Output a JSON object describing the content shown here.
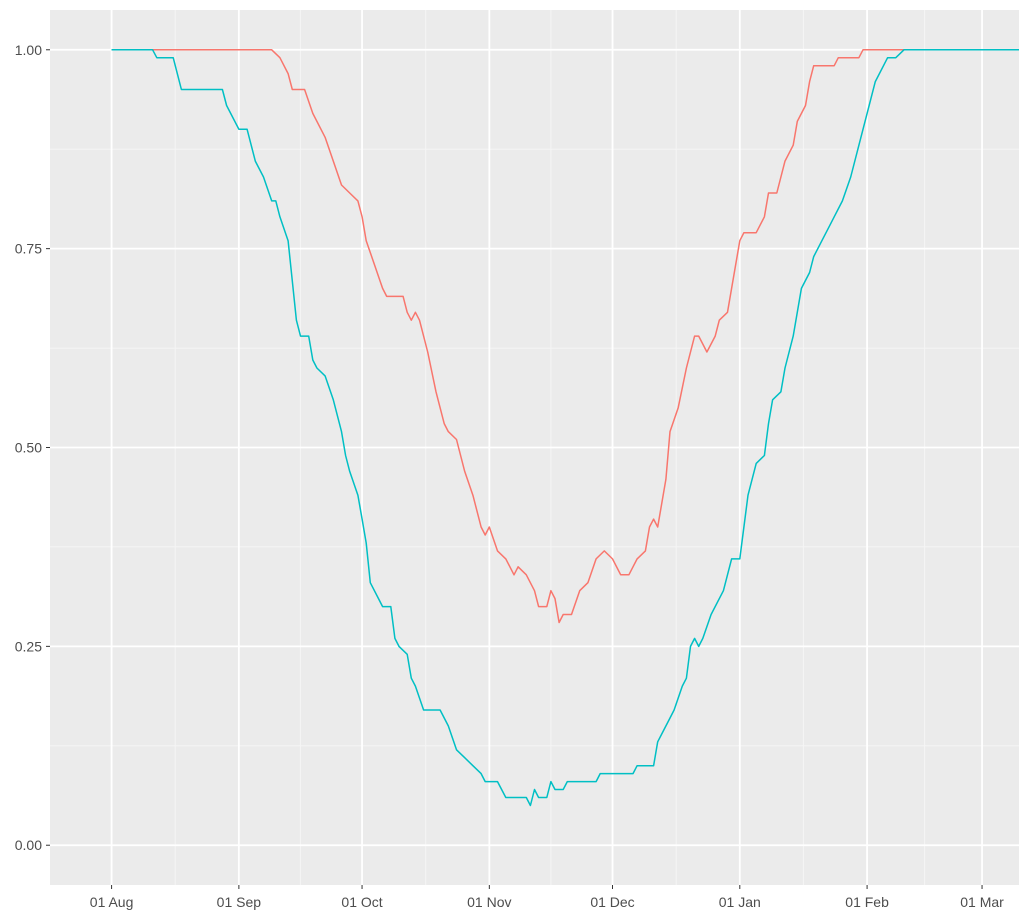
{
  "chart_data": {
    "type": "line",
    "title": "",
    "xlabel": "",
    "ylabel": "",
    "xlim": [
      "2020-07-17",
      "2021-03-10"
    ],
    "ylim": [
      -0.05,
      1.05
    ],
    "x_ticks": [
      "2020-08-01",
      "2020-09-01",
      "2020-10-01",
      "2020-11-01",
      "2020-12-01",
      "2021-01-01",
      "2021-02-01",
      "2021-03-01"
    ],
    "x_tick_labels": [
      "01 Aug",
      "01 Sep",
      "01 Oct",
      "01 Nov",
      "01 Dec",
      "01 Jan",
      "01 Feb",
      "01 Mar"
    ],
    "y_ticks": [
      0,
      0.25,
      0.5,
      0.75,
      1
    ],
    "y_tick_labels": [
      "0.00",
      "0.25",
      "0.50",
      "0.75",
      "1.00"
    ],
    "grid": true,
    "legend": "none",
    "series": [
      {
        "color": "#F8766D",
        "points": [
          [
            "2020-08-01",
            1.0
          ],
          [
            "2020-08-10",
            1.0
          ],
          [
            "2020-08-20",
            1.0
          ],
          [
            "2020-09-01",
            1.0
          ],
          [
            "2020-09-09",
            1.0
          ],
          [
            "2020-09-11",
            0.99
          ],
          [
            "2020-09-13",
            0.97
          ],
          [
            "2020-09-14",
            0.95
          ],
          [
            "2020-09-17",
            0.95
          ],
          [
            "2020-09-19",
            0.92
          ],
          [
            "2020-09-22",
            0.89
          ],
          [
            "2020-09-24",
            0.86
          ],
          [
            "2020-09-26",
            0.83
          ],
          [
            "2020-09-28",
            0.82
          ],
          [
            "2020-09-30",
            0.81
          ],
          [
            "2020-10-01",
            0.79
          ],
          [
            "2020-10-02",
            0.76
          ],
          [
            "2020-10-04",
            0.73
          ],
          [
            "2020-10-06",
            0.7
          ],
          [
            "2020-10-07",
            0.69
          ],
          [
            "2020-10-11",
            0.69
          ],
          [
            "2020-10-12",
            0.67
          ],
          [
            "2020-10-13",
            0.66
          ],
          [
            "2020-10-14",
            0.67
          ],
          [
            "2020-10-15",
            0.66
          ],
          [
            "2020-10-17",
            0.62
          ],
          [
            "2020-10-19",
            0.57
          ],
          [
            "2020-10-21",
            0.53
          ],
          [
            "2020-10-22",
            0.52
          ],
          [
            "2020-10-24",
            0.51
          ],
          [
            "2020-10-26",
            0.47
          ],
          [
            "2020-10-28",
            0.44
          ],
          [
            "2020-10-30",
            0.4
          ],
          [
            "2020-10-31",
            0.39
          ],
          [
            "2020-11-01",
            0.4
          ],
          [
            "2020-11-03",
            0.37
          ],
          [
            "2020-11-05",
            0.36
          ],
          [
            "2020-11-07",
            0.34
          ],
          [
            "2020-11-08",
            0.35
          ],
          [
            "2020-11-10",
            0.34
          ],
          [
            "2020-11-12",
            0.32
          ],
          [
            "2020-11-13",
            0.3
          ],
          [
            "2020-11-15",
            0.3
          ],
          [
            "2020-11-16",
            0.32
          ],
          [
            "2020-11-17",
            0.31
          ],
          [
            "2020-11-18",
            0.28
          ],
          [
            "2020-11-19",
            0.29
          ],
          [
            "2020-11-21",
            0.29
          ],
          [
            "2020-11-23",
            0.32
          ],
          [
            "2020-11-25",
            0.33
          ],
          [
            "2020-11-27",
            0.36
          ],
          [
            "2020-11-29",
            0.37
          ],
          [
            "2020-12-01",
            0.36
          ],
          [
            "2020-12-03",
            0.34
          ],
          [
            "2020-12-05",
            0.34
          ],
          [
            "2020-12-07",
            0.36
          ],
          [
            "2020-12-09",
            0.37
          ],
          [
            "2020-12-10",
            0.4
          ],
          [
            "2020-12-11",
            0.41
          ],
          [
            "2020-12-12",
            0.4
          ],
          [
            "2020-12-14",
            0.46
          ],
          [
            "2020-12-15",
            0.52
          ],
          [
            "2020-12-17",
            0.55
          ],
          [
            "2020-12-19",
            0.6
          ],
          [
            "2020-12-21",
            0.64
          ],
          [
            "2020-12-22",
            0.64
          ],
          [
            "2020-12-24",
            0.62
          ],
          [
            "2020-12-26",
            0.64
          ],
          [
            "2020-12-27",
            0.66
          ],
          [
            "2020-12-29",
            0.67
          ],
          [
            "2020-12-30",
            0.7
          ],
          [
            "2021-01-01",
            0.76
          ],
          [
            "2021-01-02",
            0.77
          ],
          [
            "2021-01-05",
            0.77
          ],
          [
            "2021-01-07",
            0.79
          ],
          [
            "2021-01-08",
            0.82
          ],
          [
            "2021-01-10",
            0.82
          ],
          [
            "2021-01-12",
            0.86
          ],
          [
            "2021-01-14",
            0.88
          ],
          [
            "2021-01-15",
            0.91
          ],
          [
            "2021-01-17",
            0.93
          ],
          [
            "2021-01-18",
            0.96
          ],
          [
            "2021-01-19",
            0.98
          ],
          [
            "2021-01-24",
            0.98
          ],
          [
            "2021-01-25",
            0.99
          ],
          [
            "2021-01-30",
            0.99
          ],
          [
            "2021-01-31",
            1.0
          ],
          [
            "2021-02-13",
            1.0
          ]
        ]
      },
      {
        "color": "#00BFC4",
        "points": [
          [
            "2020-08-01",
            1.0
          ],
          [
            "2020-08-11",
            1.0
          ],
          [
            "2020-08-12",
            0.99
          ],
          [
            "2020-08-16",
            0.99
          ],
          [
            "2020-08-17",
            0.97
          ],
          [
            "2020-08-18",
            0.95
          ],
          [
            "2020-08-28",
            0.95
          ],
          [
            "2020-08-29",
            0.93
          ],
          [
            "2020-09-01",
            0.9
          ],
          [
            "2020-09-03",
            0.9
          ],
          [
            "2020-09-05",
            0.86
          ],
          [
            "2020-09-07",
            0.84
          ],
          [
            "2020-09-09",
            0.81
          ],
          [
            "2020-09-10",
            0.81
          ],
          [
            "2020-09-11",
            0.79
          ],
          [
            "2020-09-13",
            0.76
          ],
          [
            "2020-09-15",
            0.66
          ],
          [
            "2020-09-16",
            0.64
          ],
          [
            "2020-09-18",
            0.64
          ],
          [
            "2020-09-19",
            0.61
          ],
          [
            "2020-09-20",
            0.6
          ],
          [
            "2020-09-22",
            0.59
          ],
          [
            "2020-09-24",
            0.56
          ],
          [
            "2020-09-26",
            0.52
          ],
          [
            "2020-09-27",
            0.49
          ],
          [
            "2020-09-28",
            0.47
          ],
          [
            "2020-09-30",
            0.44
          ],
          [
            "2020-10-01",
            0.41
          ],
          [
            "2020-10-02",
            0.38
          ],
          [
            "2020-10-03",
            0.33
          ],
          [
            "2020-10-05",
            0.31
          ],
          [
            "2020-10-06",
            0.3
          ],
          [
            "2020-10-08",
            0.3
          ],
          [
            "2020-10-09",
            0.26
          ],
          [
            "2020-10-10",
            0.25
          ],
          [
            "2020-10-12",
            0.24
          ],
          [
            "2020-10-13",
            0.21
          ],
          [
            "2020-10-14",
            0.2
          ],
          [
            "2020-10-16",
            0.17
          ],
          [
            "2020-10-20",
            0.17
          ],
          [
            "2020-10-22",
            0.15
          ],
          [
            "2020-10-24",
            0.12
          ],
          [
            "2020-10-26",
            0.11
          ],
          [
            "2020-10-28",
            0.1
          ],
          [
            "2020-10-30",
            0.09
          ],
          [
            "2020-10-31",
            0.08
          ],
          [
            "2020-11-03",
            0.08
          ],
          [
            "2020-11-05",
            0.06
          ],
          [
            "2020-11-10",
            0.06
          ],
          [
            "2020-11-11",
            0.05
          ],
          [
            "2020-11-12",
            0.07
          ],
          [
            "2020-11-13",
            0.06
          ],
          [
            "2020-11-15",
            0.06
          ],
          [
            "2020-11-16",
            0.08
          ],
          [
            "2020-11-17",
            0.07
          ],
          [
            "2020-11-19",
            0.07
          ],
          [
            "2020-11-20",
            0.08
          ],
          [
            "2020-11-27",
            0.08
          ],
          [
            "2020-11-28",
            0.09
          ],
          [
            "2020-12-06",
            0.09
          ],
          [
            "2020-12-07",
            0.1
          ],
          [
            "2020-12-11",
            0.1
          ],
          [
            "2020-12-12",
            0.13
          ],
          [
            "2020-12-13",
            0.14
          ],
          [
            "2020-12-15",
            0.16
          ],
          [
            "2020-12-16",
            0.17
          ],
          [
            "2020-12-18",
            0.2
          ],
          [
            "2020-12-19",
            0.21
          ],
          [
            "2020-12-20",
            0.25
          ],
          [
            "2020-12-21",
            0.26
          ],
          [
            "2020-12-22",
            0.25
          ],
          [
            "2020-12-23",
            0.26
          ],
          [
            "2020-12-25",
            0.29
          ],
          [
            "2020-12-28",
            0.32
          ],
          [
            "2020-12-29",
            0.34
          ],
          [
            "2020-12-30",
            0.36
          ],
          [
            "2021-01-01",
            0.36
          ],
          [
            "2021-01-03",
            0.44
          ],
          [
            "2021-01-05",
            0.48
          ],
          [
            "2021-01-07",
            0.49
          ],
          [
            "2021-01-08",
            0.53
          ],
          [
            "2021-01-09",
            0.56
          ],
          [
            "2021-01-11",
            0.57
          ],
          [
            "2021-01-12",
            0.6
          ],
          [
            "2021-01-14",
            0.64
          ],
          [
            "2021-01-16",
            0.7
          ],
          [
            "2021-01-18",
            0.72
          ],
          [
            "2021-01-19",
            0.74
          ],
          [
            "2021-01-21",
            0.76
          ],
          [
            "2021-01-23",
            0.78
          ],
          [
            "2021-01-24",
            0.79
          ],
          [
            "2021-01-26",
            0.81
          ],
          [
            "2021-01-28",
            0.84
          ],
          [
            "2021-01-30",
            0.88
          ],
          [
            "2021-02-01",
            0.92
          ],
          [
            "2021-02-03",
            0.96
          ],
          [
            "2021-02-05",
            0.98
          ],
          [
            "2021-02-06",
            0.99
          ],
          [
            "2021-02-08",
            0.99
          ],
          [
            "2021-02-10",
            1.0
          ],
          [
            "2021-03-10",
            1.0
          ]
        ]
      }
    ]
  }
}
